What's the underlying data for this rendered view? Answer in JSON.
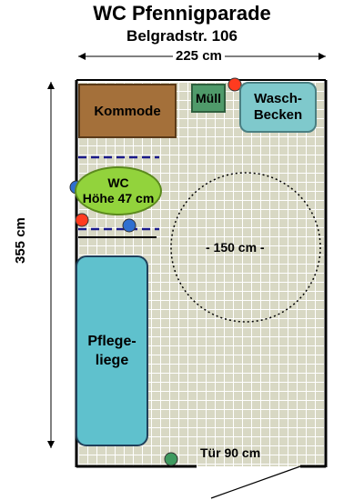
{
  "header": {
    "title": "WC Pfennigparade",
    "subtitle": "Belgradstr. 106"
  },
  "dimensions": {
    "width_label": "225 cm",
    "height_label": "355 cm",
    "turning_circle_label": "- 150 cm -",
    "door_label": "Tür 90 cm"
  },
  "fixtures": {
    "kommode": "Kommode",
    "muell": "Müll",
    "waschbecken": "Wasch-\nBecken",
    "wc": "WC\nHöhe 47 cm",
    "pflegeliege": "Pflege-\nliege"
  },
  "colors": {
    "floor": "#d8d8c4",
    "kommode": "#a4703a",
    "muell": "#4f9a6a",
    "waschbecken": "#7fc9cc",
    "wc": "#92d33c",
    "pflegeliege": "#5fc1cd",
    "wall": "#000000",
    "grab_bar": "#1a1a8a",
    "marker_red": "#ff3b1f",
    "marker_blue": "#2f6fd0",
    "marker_green": "#3f9a60"
  },
  "icons": {
    "markers": [
      "red-dot",
      "blue-dot",
      "green-dot"
    ]
  }
}
